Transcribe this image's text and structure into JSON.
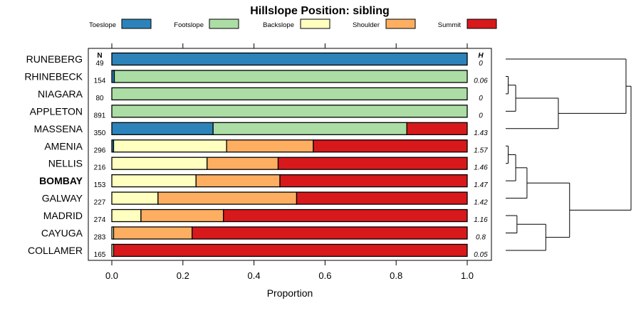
{
  "chart_data": {
    "type": "bar",
    "orientation": "horizontal",
    "stacked": true,
    "title": "Hillslope Position: sibling",
    "xlabel": "Proportion",
    "xlim": [
      0,
      1
    ],
    "xticks": [
      "0.0",
      "0.2",
      "0.4",
      "0.6",
      "0.8",
      "1.0"
    ],
    "xtick_values": [
      0,
      0.2,
      0.4,
      0.6,
      0.8,
      1.0
    ],
    "n_header": "N",
    "h_header": "H",
    "highlight": "BOMBAY",
    "legend_placement": "top",
    "series": [
      {
        "name": "Toeslope",
        "color": "#2b83ba"
      },
      {
        "name": "Footslope",
        "color": "#abdda4"
      },
      {
        "name": "Backslope",
        "color": "#ffffbf"
      },
      {
        "name": "Shoulder",
        "color": "#fdae61"
      },
      {
        "name": "Summit",
        "color": "#d7191c"
      }
    ],
    "categories": [
      "RUNEBERG",
      "RHINEBECK",
      "NIAGARA",
      "APPLETON",
      "MASSENA",
      "AMENIA",
      "NELLIS",
      "BOMBAY",
      "GALWAY",
      "MADRID",
      "CAYUGA",
      "COLLAMER"
    ],
    "n": [
      "49",
      "154",
      "80",
      "891",
      "350",
      "296",
      "216",
      "153",
      "227",
      "274",
      "283",
      "165"
    ],
    "h": [
      "0",
      "0.06",
      "0",
      "0",
      "1.43",
      "1.57",
      "1.46",
      "1.47",
      "1.42",
      "1.16",
      "0.8",
      "0.05"
    ],
    "values": [
      [
        1.0,
        0,
        0,
        0,
        0
      ],
      [
        0.007,
        0.993,
        0,
        0,
        0
      ],
      [
        0,
        1.0,
        0,
        0,
        0
      ],
      [
        0,
        1.0,
        0,
        0,
        0
      ],
      [
        0.285,
        0.545,
        0,
        0,
        0.17
      ],
      [
        0.005,
        0,
        0.318,
        0.244,
        0.433
      ],
      [
        0,
        0,
        0.268,
        0.2,
        0.532
      ],
      [
        0,
        0,
        0.237,
        0.236,
        0.527
      ],
      [
        0,
        0,
        0.13,
        0.39,
        0.48
      ],
      [
        0,
        0,
        0.082,
        0.232,
        0.686
      ],
      [
        0,
        0,
        0.005,
        0.221,
        0.774
      ],
      [
        0,
        0,
        0.005,
        0,
        0.995
      ]
    ],
    "dendrogram": {
      "type": "hierarchical clustering",
      "tree": [
        [
          [
            "RUNEBERG"
          ],
          [
            [
              [
                "RHINEBECK",
                "NIAGARA"
              ],
              "APPLETON"
            ],
            "MASSENA"
          ]
        ],
        [
          [
            [
              [
                "AMENIA",
                "NELLIS"
              ],
              "BOMBAY"
            ],
            "GALWAY"
          ],
          [
            [
              "MADRID",
              "CAYUGA"
            ],
            "COLLAMER"
          ]
        ]
      ],
      "heights": {
        "RHINEBECK+NIAGARA": 0.02,
        "+APPLETON": 0.08,
        "+MASSENA": 0.42,
        "AMENIA+NELLIS": 0.02,
        "+BOMBAY": 0.08,
        "+GALWAY": 0.17,
        "MADRID+CAYUGA": 0.09,
        "+COLLAMER": 0.32,
        "AMENIA-group+MADRID-group": 0.51,
        "RHINEBECK-group+RUNEBERG": 0.96,
        "root": 1.0
      }
    }
  }
}
